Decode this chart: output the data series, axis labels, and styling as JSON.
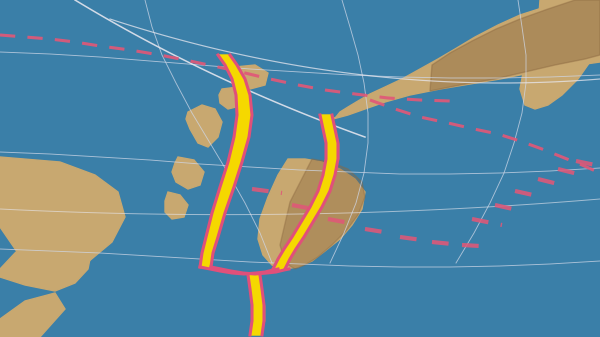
{
  "figsize": [
    6.0,
    3.37
  ],
  "dpi": 100,
  "ocean_color": "#3a7fa8",
  "land_color_light": "#c8a870",
  "land_color_dark": "#8b6840",
  "plate_border_yellow": "#f5d800",
  "plate_border_pink": "#e0507a",
  "plate_border_dashed_color": "#e05878",
  "arc_line_color": "#d0d8e8",
  "white_line_color": "#e8e8f0"
}
